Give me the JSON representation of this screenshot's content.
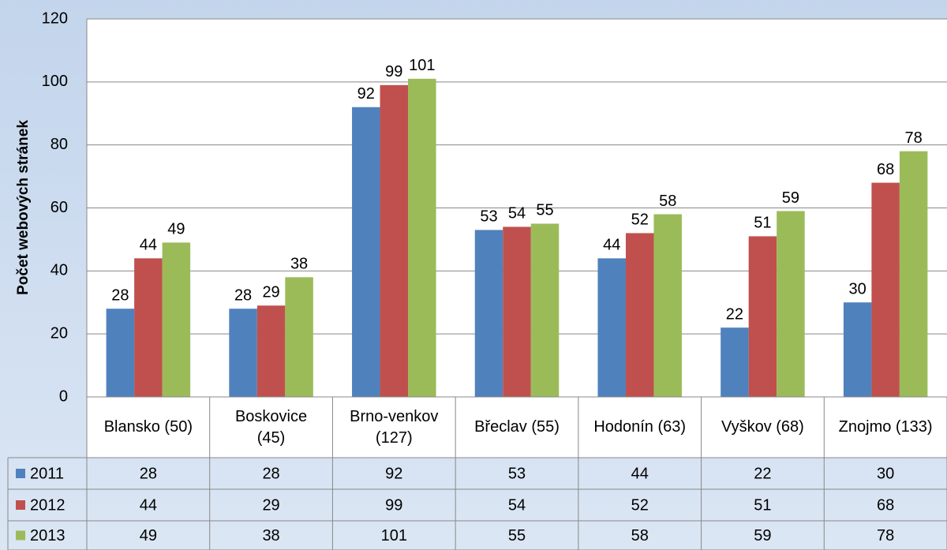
{
  "chart_data": {
    "type": "bar",
    "y_label": "Počet webových stránek",
    "categories": [
      "Blansko (50)",
      "Boskovice (45)",
      "Brno-venkov (127)",
      "Břeclav (55)",
      "Hodonín (63)",
      "Vyškov (68)",
      "Znojmo (133)"
    ],
    "series": [
      {
        "name": "2011",
        "color": "#4f81bd",
        "values": [
          28,
          28,
          92,
          53,
          44,
          22,
          30
        ]
      },
      {
        "name": "2012",
        "color": "#c0504d",
        "values": [
          44,
          29,
          99,
          54,
          52,
          51,
          68
        ]
      },
      {
        "name": "2013",
        "color": "#9bbb59",
        "values": [
          49,
          38,
          101,
          55,
          58,
          59,
          78
        ]
      }
    ],
    "ylim": [
      0,
      120
    ],
    "yticks": [
      0,
      20,
      40,
      60,
      80,
      100,
      120
    ],
    "grid": true,
    "data_table": true
  }
}
